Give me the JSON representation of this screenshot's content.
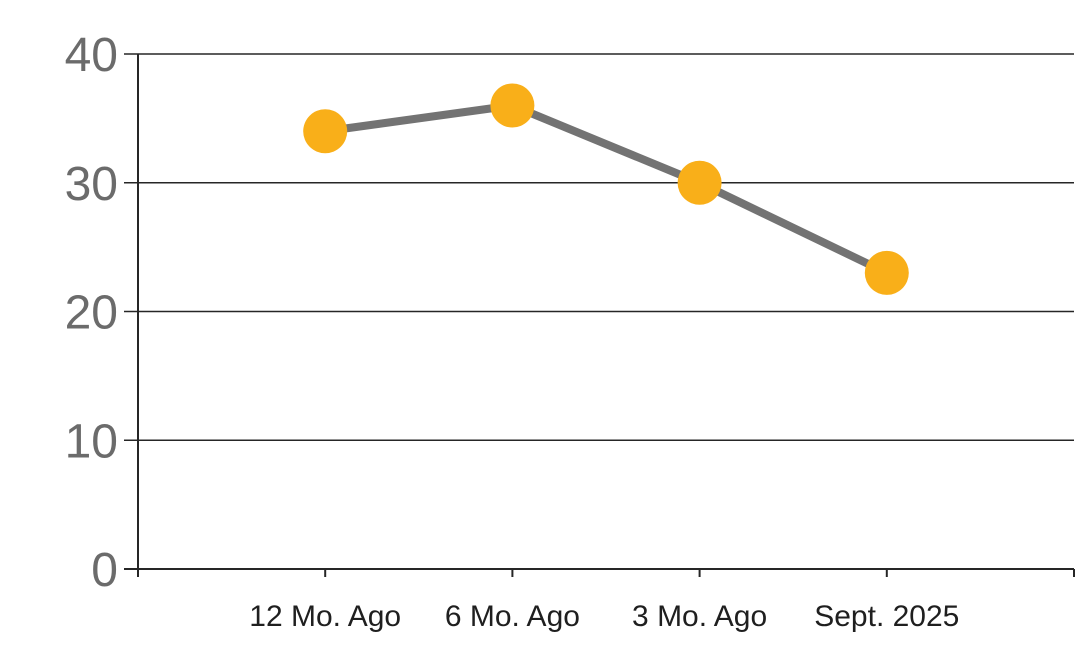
{
  "chart_data": {
    "type": "line",
    "categories": [
      "12 Mo. Ago",
      "6 Mo. Ago",
      "3 Mo. Ago",
      "Sept. 2025"
    ],
    "values": [
      34,
      36,
      30,
      23
    ],
    "series": [
      {
        "name": "series-1",
        "values": [
          34,
          36,
          30,
          23
        ]
      }
    ],
    "title": "",
    "xlabel": "",
    "ylabel": "",
    "ylim": [
      0,
      40
    ],
    "ytick_interval": 10,
    "ytick_labels": [
      "0",
      "10",
      "20",
      "30",
      "40"
    ],
    "grid": true,
    "legend": false,
    "legend_position": "none",
    "marker": "circle",
    "colors": {
      "background": "#ffffff",
      "line": "#737373",
      "marker": "#F9AF19",
      "gridline": "#262626",
      "axis": "#262626",
      "y_tick_label": "#6b6b6b",
      "x_tick_label": "#1f1f1f"
    }
  }
}
